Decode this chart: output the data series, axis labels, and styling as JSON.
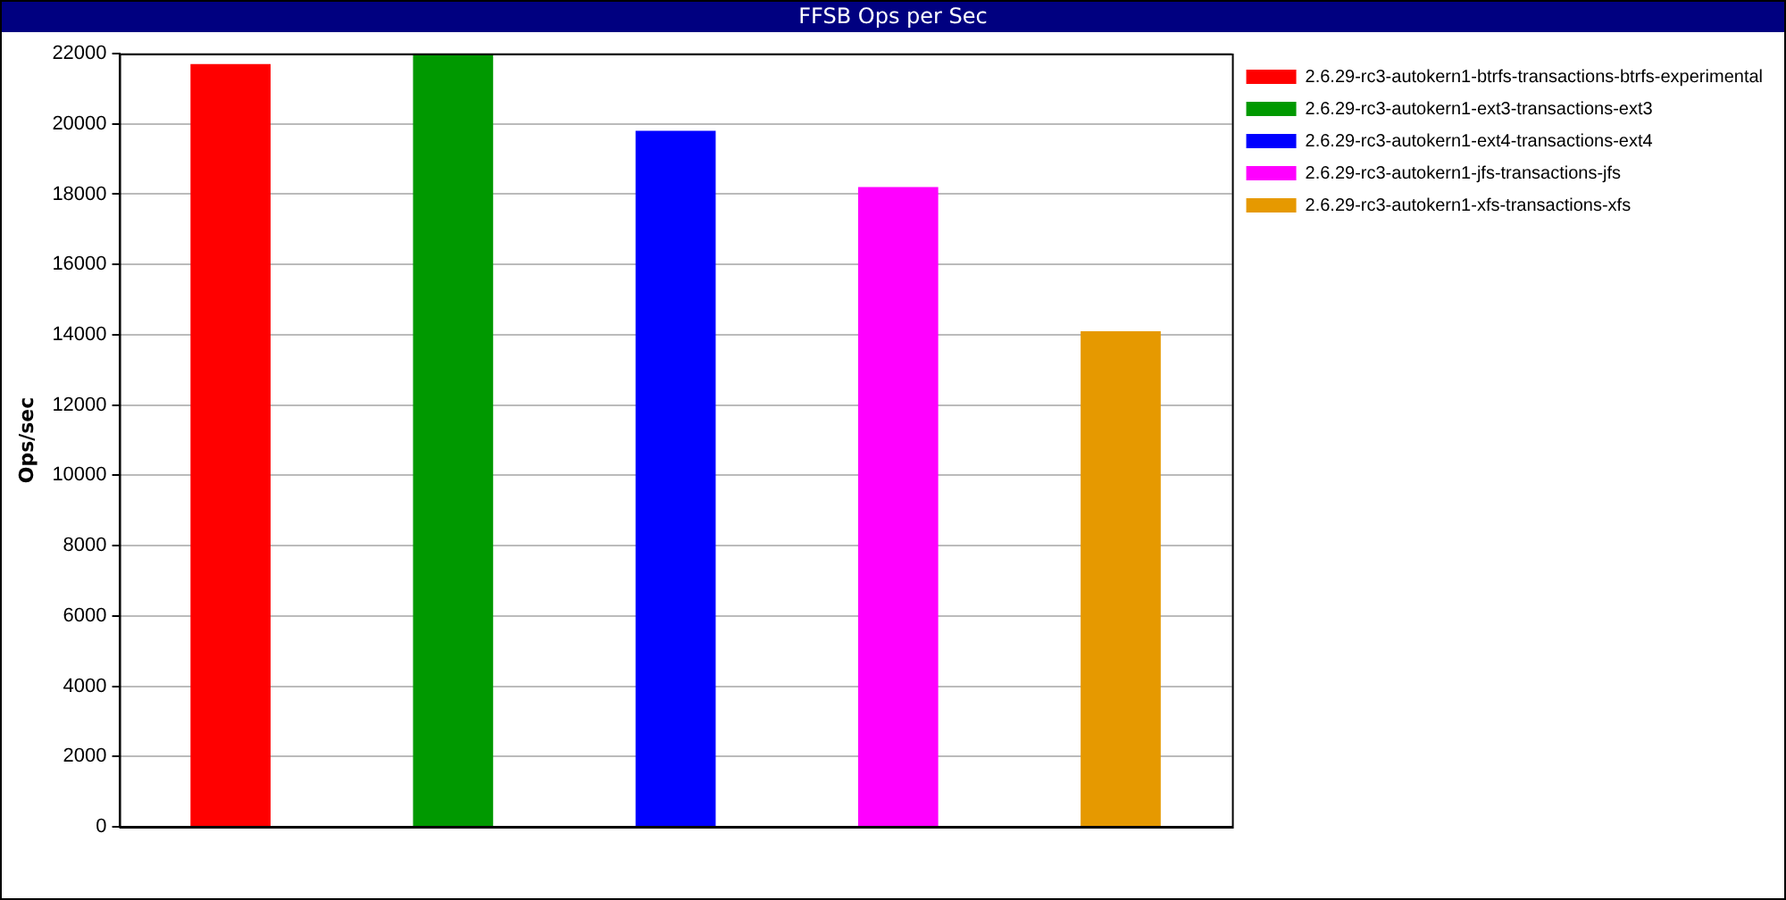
{
  "chart_data": {
    "type": "bar",
    "title": "FFSB Ops per Sec",
    "ylabel": "Ops/sec",
    "categories": [
      null,
      null,
      null,
      null,
      null
    ],
    "series": [
      {
        "name": "2.6.29-rc3-autokern1-btrfs-transactions-btrfs-experimental",
        "color": "#ff0000",
        "values": [
          21700,
          null,
          null,
          null,
          null
        ]
      },
      {
        "name": "2.6.29-rc3-autokern1-ext3-transactions-ext3",
        "color": "#009900",
        "values": [
          null,
          22000,
          null,
          null,
          null
        ]
      },
      {
        "name": "2.6.29-rc3-autokern1-ext4-transactions-ext4",
        "color": "#0000ff",
        "values": [
          null,
          null,
          19800,
          null,
          null
        ]
      },
      {
        "name": "2.6.29-rc3-autokern1-jfs-transactions-jfs",
        "color": "#ff00ff",
        "values": [
          null,
          null,
          null,
          18200,
          null
        ]
      },
      {
        "name": "2.6.29-rc3-autokern1-xfs-transactions-xfs",
        "color": "#e69900",
        "values": [
          null,
          null,
          null,
          null,
          14100
        ]
      }
    ],
    "ylim": [
      0,
      22000
    ],
    "yticks": [
      0,
      2000,
      4000,
      6000,
      8000,
      10000,
      12000,
      14000,
      16000,
      18000,
      20000,
      22000
    ],
    "grid": "y",
    "legend": "right",
    "tick_labels": "y"
  }
}
